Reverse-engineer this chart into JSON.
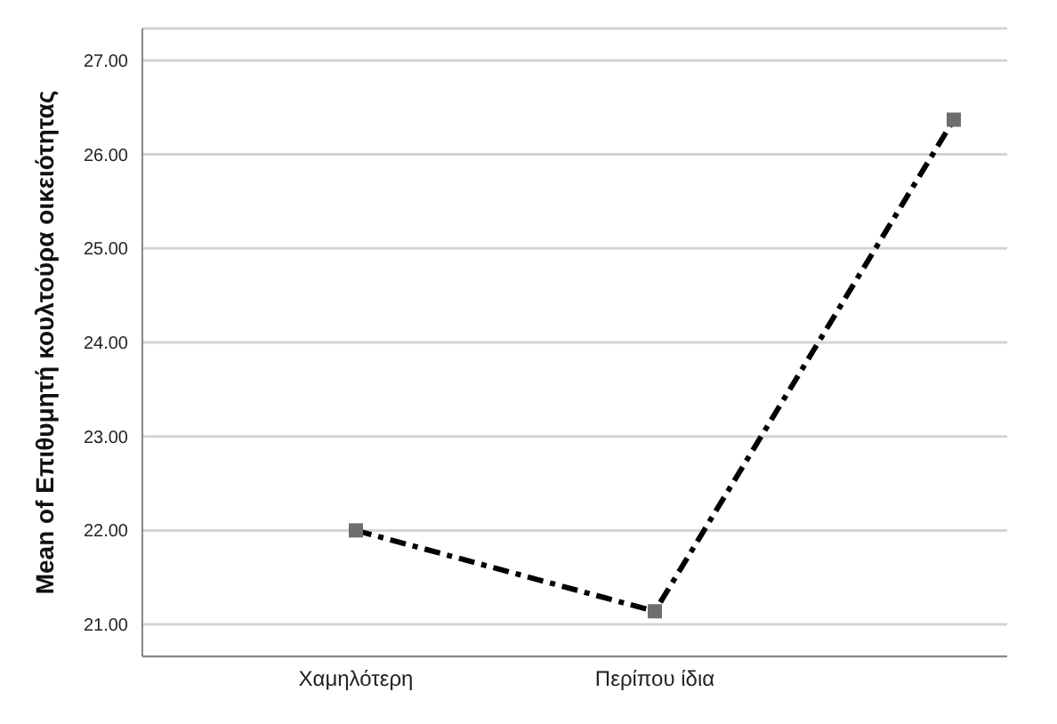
{
  "chart_data": {
    "type": "line",
    "ylabel": "Mean of Επιθυμητή κουλτούρα οικειότητας",
    "categories": [
      "Χαμηλότερη",
      "Περίπου ίδια",
      null
    ],
    "series": [
      {
        "color": "#000000",
        "values": [
          22.0,
          21.14,
          26.37
        ]
      }
    ],
    "ylim": [
      20.66,
      27.34
    ],
    "yticks": [
      {
        "value": 21,
        "label": "21.00"
      },
      {
        "value": 22,
        "label": "22.00"
      },
      {
        "value": 23,
        "label": "23.00"
      },
      {
        "value": 24,
        "label": "24.00"
      },
      {
        "value": 25,
        "label": "25.00"
      },
      {
        "value": 26,
        "label": "26.00"
      },
      {
        "value": 27,
        "label": "27.00"
      }
    ],
    "grid": "y",
    "marker": "square",
    "line_style": "dashed",
    "legend": false
  }
}
